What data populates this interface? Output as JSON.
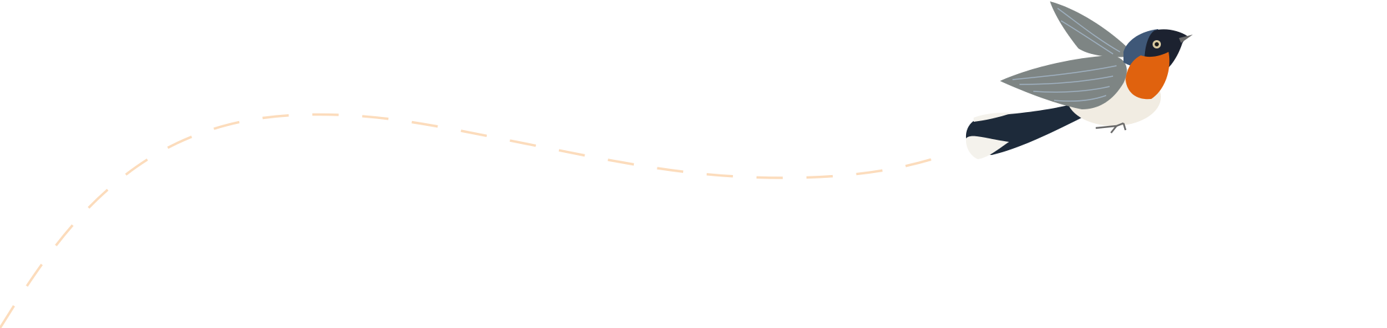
{
  "scene": {
    "background_color": "#ffffff",
    "flight_path": {
      "style": "dashed",
      "color": "#fcdcbc"
    },
    "bird": {
      "name": "bird-illustration",
      "colors": {
        "head": "#1c2230",
        "nape": "#3f5878",
        "throat": "#e0620e",
        "belly": "#f1ece2",
        "wing": "#7e8584",
        "wing_highlight": "#9fb0c0",
        "tail": "#1d2a3a",
        "tail_tip": "#f4f2ec",
        "beak": "#6a6a6a",
        "eye_ring": "#d8c9a0"
      }
    }
  }
}
